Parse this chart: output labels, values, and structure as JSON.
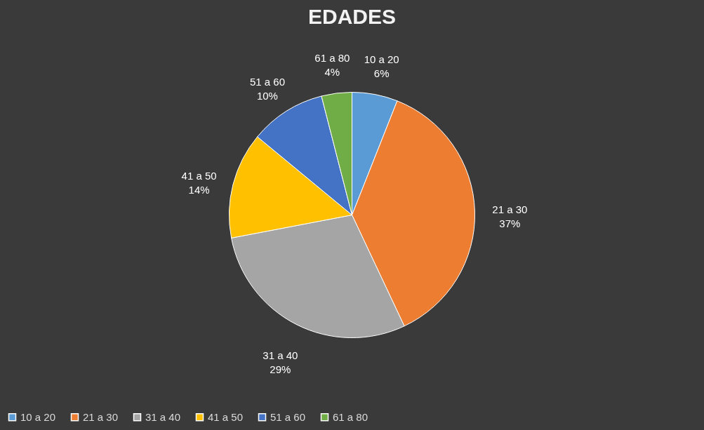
{
  "chart_data": {
    "type": "pie",
    "title": "EDADES",
    "categories": [
      "10 a 20",
      "21 a 30",
      "31 a 40",
      "41 a 50",
      "51 a 60",
      "61 a 80"
    ],
    "values": [
      6,
      37,
      29,
      14,
      10,
      4
    ],
    "value_labels": [
      "6%",
      "37%",
      "29%",
      "14%",
      "10%",
      "4%"
    ],
    "colors": [
      "#5b9bd5",
      "#ed7d31",
      "#a5a5a5",
      "#ffc000",
      "#4472c4",
      "#70ad47"
    ],
    "legend": "bottom"
  }
}
